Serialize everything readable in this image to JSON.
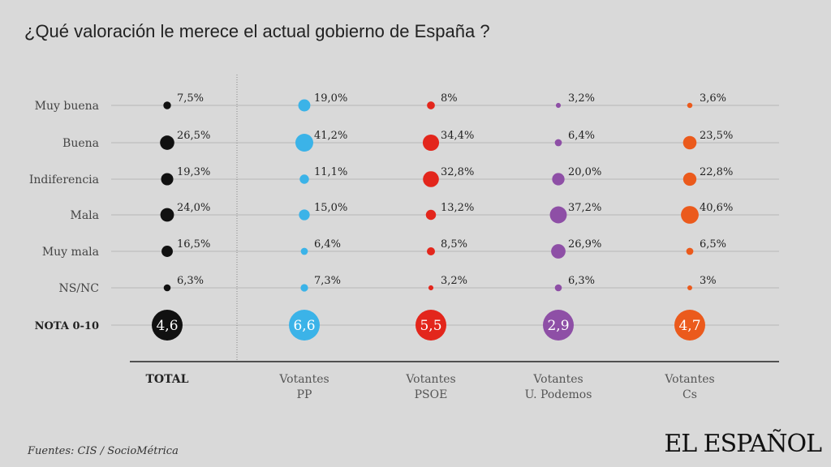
{
  "title": "¿Qué valoración le merece el actual gobierno de España ?",
  "source": "Fuentes: CIS / SocioMétrica",
  "logo": "EL ESPAÑOL",
  "chart_data": {
    "type": "bubble-matrix",
    "rows": [
      "Muy buena",
      "Buena",
      "Indiferencia",
      "Mala",
      "Muy mala",
      "NS/NC"
    ],
    "score_row_label": "NOTA 0-10",
    "columns": [
      {
        "label": [
          "TOTAL"
        ],
        "bold": true,
        "color": "#111111",
        "values": [
          7.5,
          26.5,
          19.3,
          24.0,
          16.5,
          6.3
        ],
        "value_labels": [
          "7,5%",
          "26,5%",
          "19,3%",
          "24,0%",
          "16,5%",
          "6,3%"
        ],
        "score": 4.6,
        "score_label": "4,6"
      },
      {
        "label": [
          "Votantes",
          "PP"
        ],
        "bold": false,
        "color": "#3bb3e8",
        "values": [
          19.0,
          41.2,
          11.1,
          15.0,
          6.4,
          7.3
        ],
        "value_labels": [
          "19,0%",
          "41,2%",
          "11,1%",
          "15,0%",
          "6,4%",
          "7,3%"
        ],
        "score": 6.6,
        "score_label": "6,6"
      },
      {
        "label": [
          "Votantes",
          "PSOE"
        ],
        "bold": false,
        "color": "#e3261c",
        "values": [
          8,
          34.4,
          32.8,
          13.2,
          8.5,
          3.2
        ],
        "value_labels": [
          "8%",
          "34,4%",
          "32,8%",
          "13,2%",
          "8,5%",
          "3,2%"
        ],
        "score": 5.5,
        "score_label": "5,5"
      },
      {
        "label": [
          "Votantes",
          "U. Podemos"
        ],
        "bold": false,
        "color": "#8e4fa6",
        "values": [
          3.2,
          6.4,
          20.0,
          37.2,
          26.9,
          6.3
        ],
        "value_labels": [
          "3,2%",
          "6,4%",
          "20,0%",
          "37,2%",
          "26,9%",
          "6,3%"
        ],
        "score": 2.9,
        "score_label": "2,9"
      },
      {
        "label": [
          "Votantes",
          "Cs"
        ],
        "bold": false,
        "color": "#eb5a1c",
        "values": [
          3.6,
          23.5,
          22.8,
          40.6,
          6.5,
          3
        ],
        "value_labels": [
          "3,6%",
          "23,5%",
          "22,8%",
          "40,6%",
          "6,5%",
          "3%"
        ],
        "score": 4.7,
        "score_label": "4,7"
      }
    ]
  }
}
